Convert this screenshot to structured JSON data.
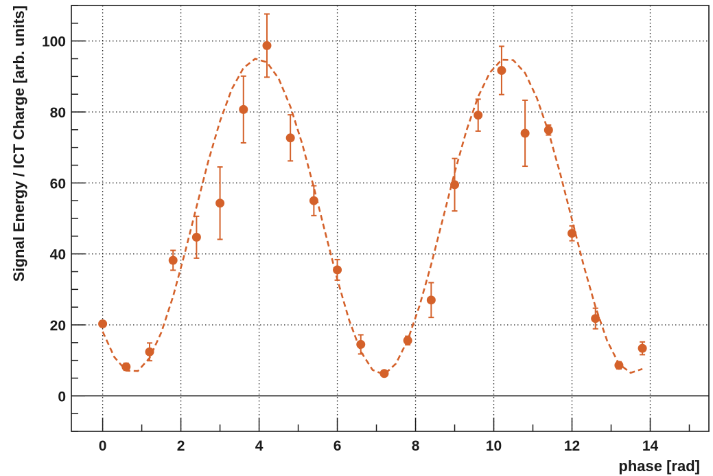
{
  "chart_data": {
    "type": "scatter",
    "title": "",
    "xlabel": "phase [rad]",
    "ylabel": "Signal Energy / ICT Charge [arb. units]",
    "xlim": [
      -0.8,
      15.5
    ],
    "ylim": [
      -10,
      110
    ],
    "x_ticks": [
      0,
      2,
      4,
      6,
      8,
      10,
      12,
      14
    ],
    "y_ticks": [
      0,
      20,
      40,
      60,
      80,
      100
    ],
    "grid": true,
    "grid_style": "dotted",
    "zero_line": true,
    "legend": "none",
    "colors": {
      "data": "#d4612a",
      "frame": "#1a1a1a",
      "grid": "#222222"
    },
    "series": [
      {
        "kind": "points-with-error-bars",
        "x": [
          0.0,
          0.6,
          1.2,
          1.8,
          2.4,
          3.0,
          3.6,
          4.2,
          4.8,
          5.4,
          6.0,
          6.6,
          7.2,
          7.8,
          8.4,
          9.0,
          9.6,
          10.2,
          10.8,
          11.4,
          12.0,
          12.6,
          13.2,
          13.8
        ],
        "y": [
          20.3,
          8.2,
          12.4,
          38.2,
          44.7,
          54.3,
          80.7,
          98.7,
          72.7,
          55.0,
          35.5,
          14.5,
          6.3,
          15.6,
          27.0,
          59.5,
          79.1,
          91.7,
          74.0,
          74.9,
          45.8,
          21.8,
          8.6,
          13.4
        ],
        "yerr": [
          0.8,
          1.0,
          2.5,
          2.8,
          5.9,
          10.2,
          9.4,
          8.9,
          6.5,
          4.2,
          2.9,
          2.7,
          0.8,
          1.2,
          4.9,
          7.4,
          4.5,
          6.8,
          9.3,
          1.4,
          2.1,
          2.9,
          1.0,
          1.8
        ]
      },
      {
        "kind": "fit-curve",
        "style": "dashed",
        "x": [
          0.0,
          0.3,
          0.6,
          0.9,
          1.2,
          1.5,
          1.8,
          2.1,
          2.4,
          2.7,
          3.0,
          3.3,
          3.6,
          3.9,
          4.2,
          4.5,
          4.8,
          5.1,
          5.4,
          5.7,
          6.0,
          6.3,
          6.6,
          6.9,
          7.2,
          7.5,
          7.8,
          8.1,
          8.4,
          8.7,
          9.0,
          9.3,
          9.6,
          9.9,
          10.2,
          10.5,
          10.8,
          11.1,
          11.4,
          11.7,
          12.0,
          12.3,
          12.6,
          12.9,
          13.2,
          13.5,
          13.8
        ],
        "y": [
          18.1,
          10.9,
          7.1,
          7.0,
          10.7,
          17.9,
          28.0,
          40.2,
          53.3,
          66.1,
          77.4,
          86.4,
          92.4,
          95.0,
          94.0,
          89.4,
          81.5,
          71.1,
          58.7,
          45.6,
          32.8,
          21.4,
          12.5,
          7.3,
          6.0,
          9.1,
          15.7,
          25.3,
          37.0,
          49.9,
          62.9,
          74.7,
          84.3,
          91.1,
          94.7,
          94.6,
          91.0,
          84.0,
          74.4,
          62.6,
          49.7,
          36.7,
          25.1,
          15.5,
          9.0,
          6.5,
          7.6
        ]
      }
    ]
  }
}
